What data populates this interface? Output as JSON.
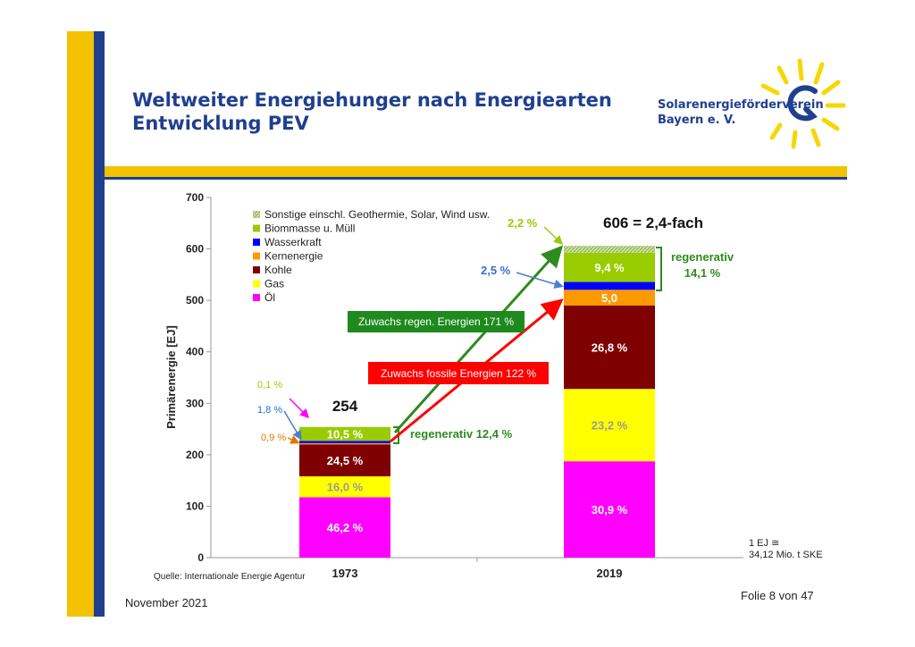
{
  "slide": {
    "title_line1": "Weltweiter Energiehunger nach Energiearten",
    "title_line2": "Entwicklung PEV",
    "footer_date": "November 2021",
    "footer_page": "Folie 8 von 47",
    "logo_line1": "Solarenergieförderverein",
    "logo_line2": "Bayern e. V.",
    "colors": {
      "title": "#1f3f8f",
      "yellow_bar": "#f2c200",
      "blue_bar": "#1f3f8f"
    }
  },
  "chart_data": {
    "type": "bar",
    "stacked": true,
    "categories": [
      "1973",
      "2019"
    ],
    "ylabel": "Primärenergie [EJ]",
    "ylim": [
      0,
      700
    ],
    "yticks": [
      "0",
      "100",
      "200",
      "300",
      "400",
      "500",
      "600",
      "700"
    ],
    "grid": false,
    "legend_position": "top-left",
    "series": [
      {
        "name": "Öl",
        "color": "#ff00ff",
        "values": [
          117.4,
          187.3
        ],
        "labels": [
          "46,2 %",
          "30,9 %"
        ],
        "label_colors": [
          "#ffffff",
          "#ffffff"
        ]
      },
      {
        "name": "Gas",
        "color": "#ffff00",
        "values": [
          40.6,
          140.6
        ],
        "labels": [
          "16,0 %",
          "23,2 %"
        ],
        "label_colors": [
          "#9a9a9a",
          "#9a9a9a"
        ]
      },
      {
        "name": "Kohle",
        "color": "#7f0000",
        "values": [
          62.2,
          162.4
        ],
        "labels": [
          "24,5 %",
          "26,8 %"
        ],
        "label_colors": [
          "#ffffff",
          "#ffffff"
        ]
      },
      {
        "name": "Kernenergie",
        "color": "#ff9900",
        "values": [
          2.3,
          30.3
        ],
        "labels": [
          "",
          "5,0"
        ],
        "label_colors": [
          "#ffffff",
          "#ffffff"
        ]
      },
      {
        "name": "Wasserkraft",
        "color": "#0000ff",
        "values": [
          4.6,
          15.2
        ],
        "labels": [
          "",
          ""
        ],
        "label_colors": [
          "#ffffff",
          "#ffffff"
        ]
      },
      {
        "name": "Biommasse u. Müll",
        "color": "#99cc00",
        "values": [
          26.7,
          57.0
        ],
        "labels": [
          "10,5 %",
          "9,4 %"
        ],
        "label_colors": [
          "#ffffff",
          "#ffffff"
        ]
      },
      {
        "name": "Sonstige einschl. Geothermie, Solar, Wind usw.",
        "color": "#c9dfa0",
        "values": [
          0.3,
          13.3
        ],
        "labels": [
          "",
          ""
        ],
        "label_colors": [
          "#ffffff",
          "#ffffff"
        ]
      }
    ],
    "legend_order": [
      "Sonstige einschl. Geothermie, Solar, Wind usw.",
      "Biommasse u. Müll",
      "Wasserkraft",
      "Kernenergie",
      "Kohle",
      "Gas",
      "Öl"
    ],
    "totals": {
      "t1973": "254",
      "t2019": "606 = 2,4-fach"
    },
    "annotations": {
      "pct_01": "0,1 %",
      "pct_18": "1,8 %",
      "pct_09": "0,9 %",
      "pct_22": "2,2 %",
      "pct_25": "2,5 %",
      "reg_1973": "regenerativ 12,4 %",
      "reg_2019_a": "regenerativ",
      "reg_2019_b": "14,1 %",
      "growth_regen": "Zuwachs regen. Energien  171 %",
      "growth_fossil": "Zuwachs fossile Energien  122 %",
      "unit_note_a": "1 EJ ≅",
      "unit_note_b": "34,12 Mio. t SKE",
      "source": "Quelle: Internationale Energie Agentur"
    }
  }
}
